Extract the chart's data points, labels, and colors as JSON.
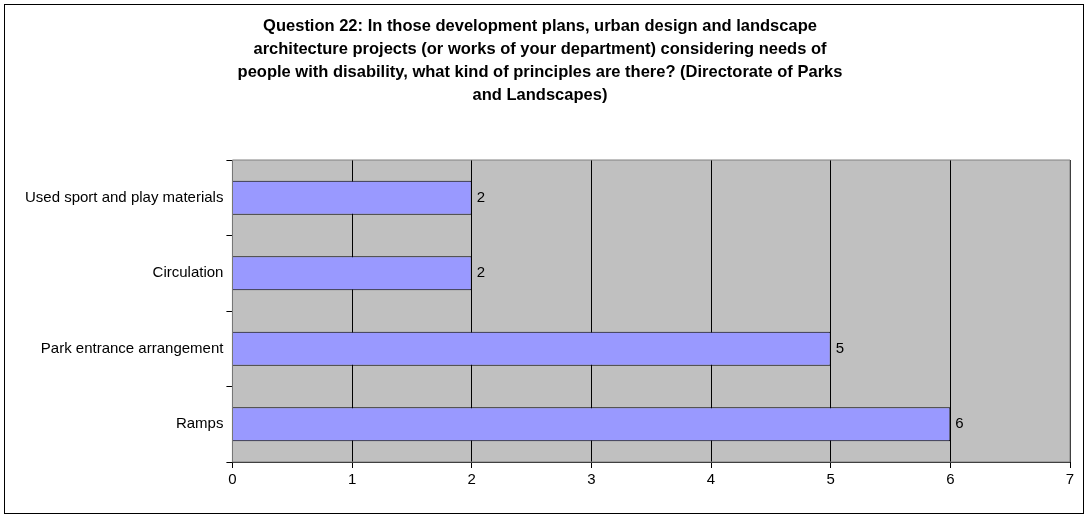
{
  "chart_data": {
    "type": "bar",
    "orientation": "horizontal",
    "title": "Question 22: In those development plans, urban design and landscape architecture projects (or works of your department) considering needs of people with disability, what kind of principles are there? (Directorate of Parks and Landscapes)",
    "categories": [
      "Used sport and play materials",
      "Circulation",
      "Park entrance arrangement",
      "Ramps"
    ],
    "values": [
      2,
      2,
      5,
      6
    ],
    "color": "#9999ff",
    "xlim": [
      0,
      7
    ],
    "xticks": [
      0,
      1,
      2,
      3,
      4,
      5,
      6,
      7
    ],
    "grid": "x",
    "legend": false,
    "data_labels": true
  }
}
